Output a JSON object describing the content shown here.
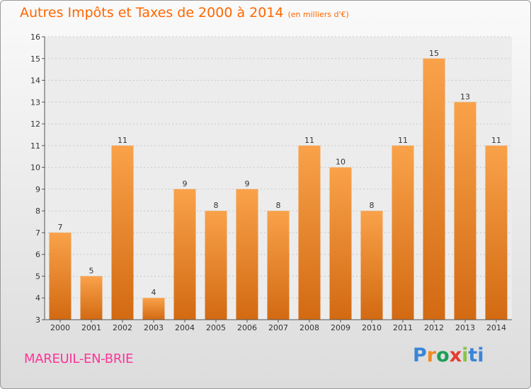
{
  "chart_data": {
    "type": "bar",
    "title": "Autres Impôts et Taxes de 2000 à 2014",
    "subtitle": "(en milliers d'€)",
    "categories": [
      "2000",
      "2001",
      "2002",
      "2003",
      "2004",
      "2005",
      "2006",
      "2007",
      "2008",
      "2009",
      "2010",
      "2011",
      "2012",
      "2013",
      "2014"
    ],
    "values": [
      7,
      5,
      11,
      4,
      9,
      8,
      9,
      8,
      11,
      10,
      8,
      11,
      15,
      13,
      11
    ],
    "ylim": [
      3,
      16
    ],
    "yticks": [
      3,
      4,
      5,
      6,
      7,
      8,
      9,
      10,
      11,
      12,
      13,
      14,
      15,
      16
    ],
    "grid": true,
    "bar_color_top": "#f9a24a",
    "bar_color_bottom": "#d26a12"
  },
  "footer": {
    "commune": "MAREUIL-EN-BRIE",
    "logo_parts": [
      "P",
      "r",
      "o",
      "x",
      "i",
      "ti"
    ]
  }
}
